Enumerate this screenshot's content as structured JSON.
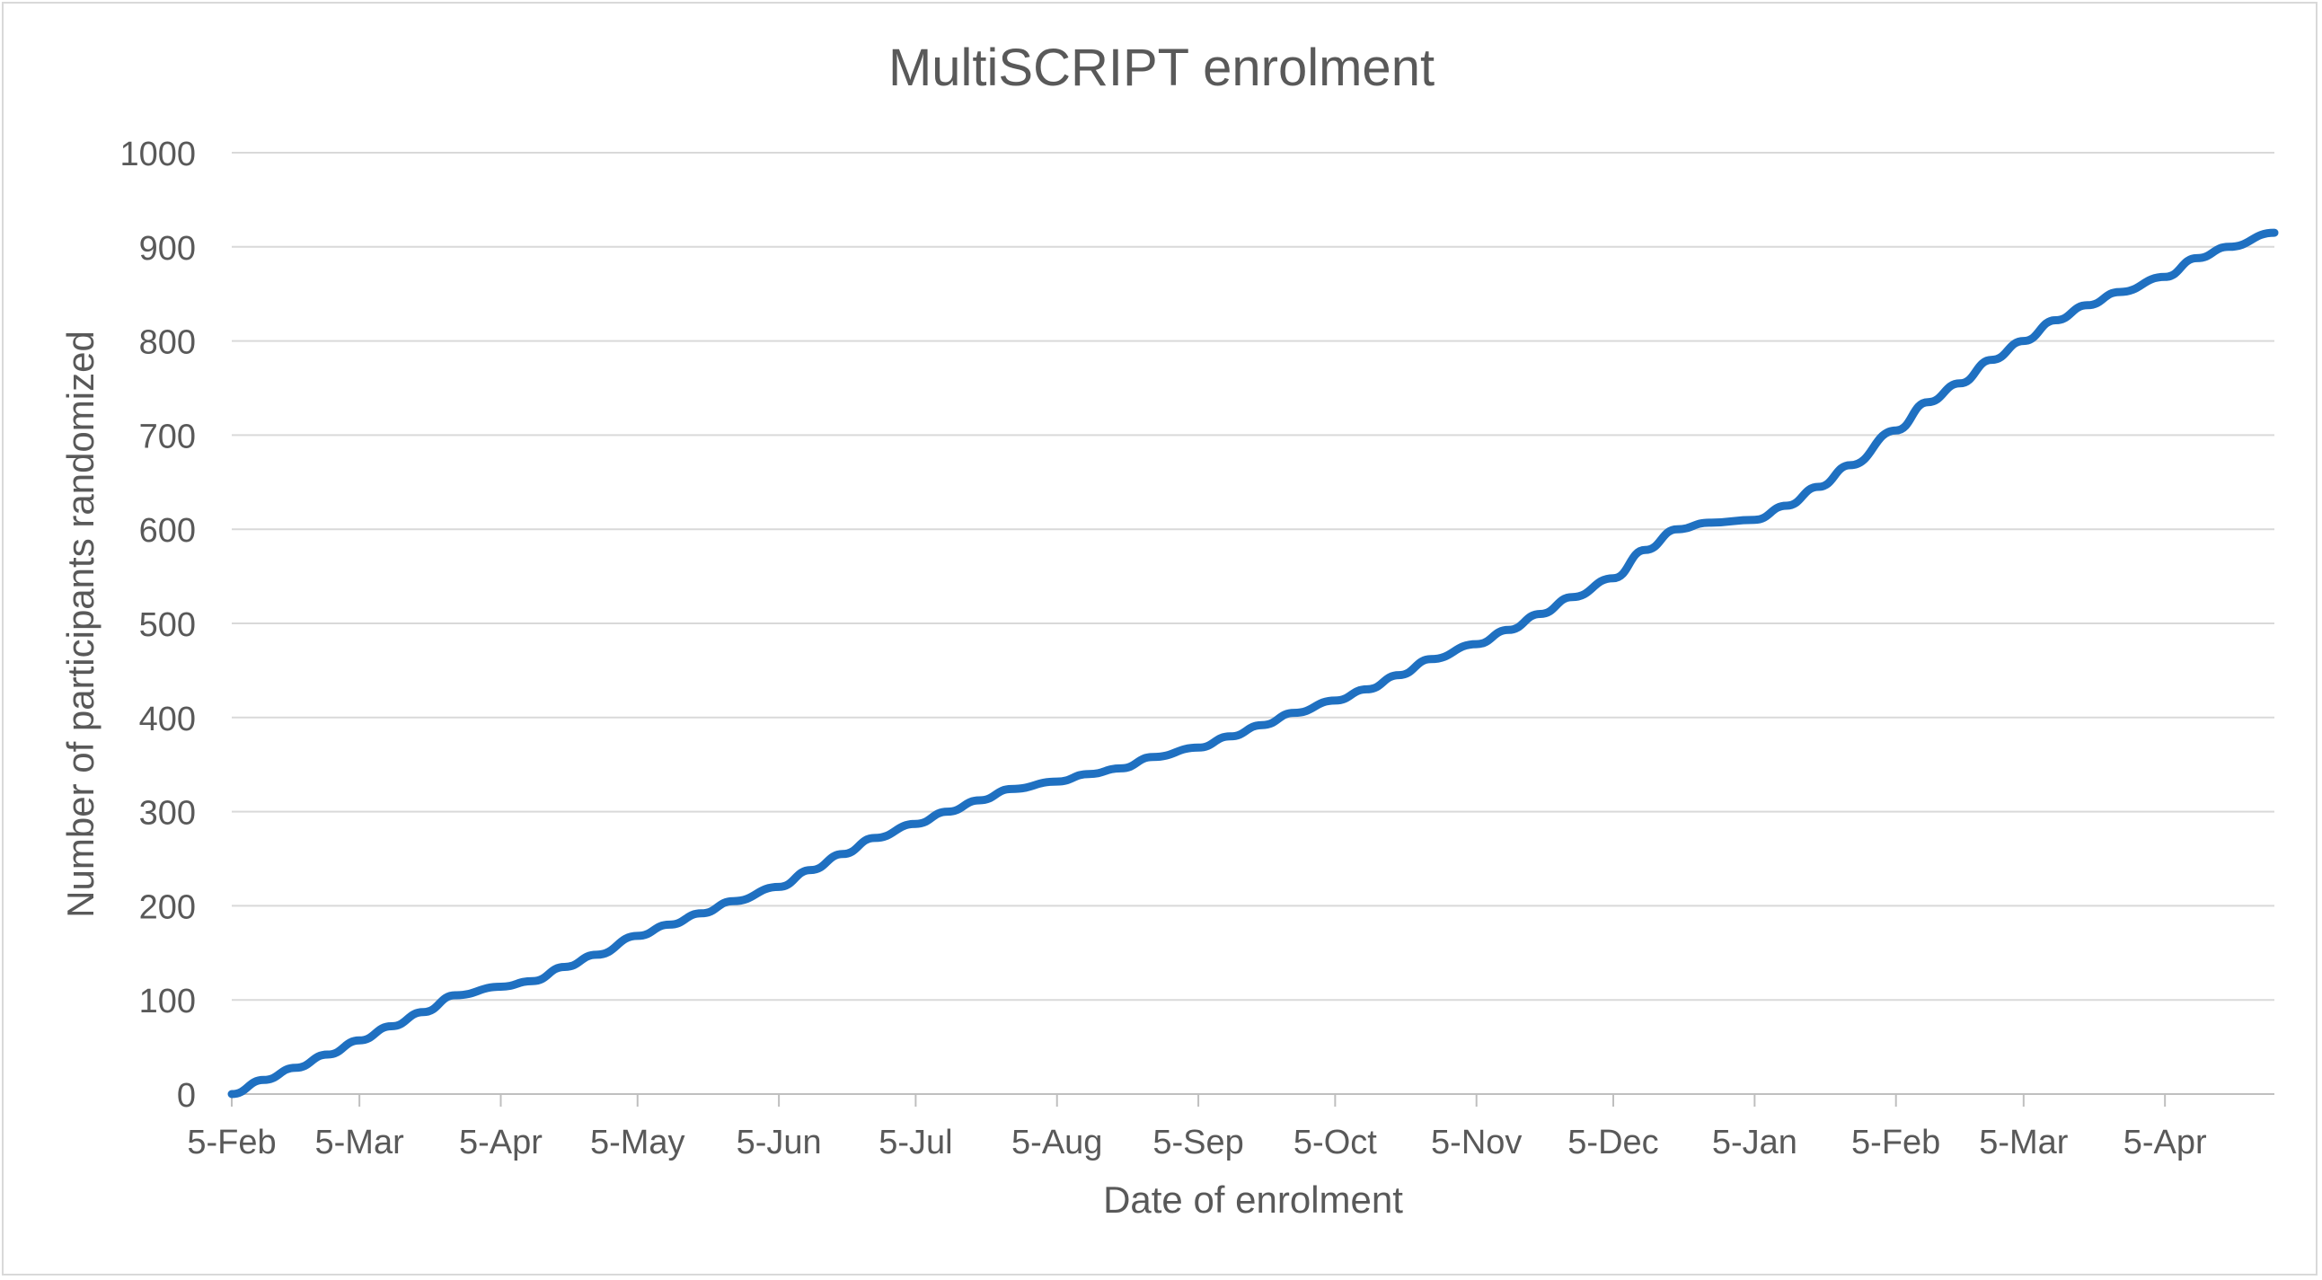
{
  "chart_data": {
    "type": "line",
    "title": "MultiSCRIPT enrolment",
    "xlabel": "Date of enrolment",
    "ylabel": "Number of participants randomized",
    "ylim": [
      0,
      1000
    ],
    "yticks": [
      0,
      100,
      200,
      300,
      400,
      500,
      600,
      700,
      800,
      900,
      1000
    ],
    "xlim": [
      "2022-02-05",
      "2023-04-29"
    ],
    "x_tick_labels": [
      "5-Feb",
      "5-Mar",
      "5-Apr",
      "5-May",
      "5-Jun",
      "5-Jul",
      "5-Aug",
      "5-Sep",
      "5-Oct",
      "5-Nov",
      "5-Dec",
      "5-Jan",
      "5-Feb",
      "5-Mar",
      "5-Apr"
    ],
    "x_tick_dates": [
      "2022-02-05",
      "2022-03-05",
      "2022-04-05",
      "2022-05-05",
      "2022-06-05",
      "2022-07-05",
      "2022-08-05",
      "2022-09-05",
      "2022-10-05",
      "2022-11-05",
      "2022-12-05",
      "2023-01-05",
      "2023-02-05",
      "2023-03-05",
      "2023-04-05"
    ],
    "grid": true,
    "legend": "none",
    "series": [
      {
        "color": "#1F70C1",
        "x": [
          "2022-02-05",
          "2022-02-12",
          "2022-02-19",
          "2022-02-26",
          "2022-03-05",
          "2022-03-12",
          "2022-03-19",
          "2022-03-26",
          "2022-04-05",
          "2022-04-12",
          "2022-04-19",
          "2022-04-26",
          "2022-05-05",
          "2022-05-12",
          "2022-05-19",
          "2022-05-26",
          "2022-06-05",
          "2022-06-12",
          "2022-06-19",
          "2022-06-26",
          "2022-07-05",
          "2022-07-12",
          "2022-07-19",
          "2022-07-26",
          "2022-08-05",
          "2022-08-12",
          "2022-08-19",
          "2022-08-26",
          "2022-09-05",
          "2022-09-12",
          "2022-09-19",
          "2022-09-26",
          "2022-10-05",
          "2022-10-12",
          "2022-10-19",
          "2022-10-26",
          "2022-11-05",
          "2022-11-12",
          "2022-11-19",
          "2022-11-26",
          "2022-12-05",
          "2022-12-12",
          "2022-12-19",
          "2022-12-26",
          "2023-01-05",
          "2023-01-12",
          "2023-01-19",
          "2023-01-26",
          "2023-02-05",
          "2023-02-12",
          "2023-02-19",
          "2023-02-26",
          "2023-03-05",
          "2023-03-12",
          "2023-03-19",
          "2023-03-26",
          "2023-04-05",
          "2023-04-12",
          "2023-04-19",
          "2023-04-29"
        ],
        "y": [
          0,
          15,
          28,
          42,
          57,
          72,
          87,
          105,
          114,
          120,
          135,
          148,
          168,
          180,
          192,
          205,
          220,
          238,
          255,
          272,
          287,
          300,
          312,
          324,
          332,
          340,
          346,
          358,
          368,
          380,
          392,
          405,
          418,
          430,
          445,
          462,
          478,
          493,
          510,
          528,
          548,
          578,
          600,
          607,
          610,
          625,
          645,
          668,
          705,
          735,
          755,
          780,
          800,
          822,
          838,
          852,
          868,
          888,
          900,
          915
        ]
      }
    ]
  }
}
